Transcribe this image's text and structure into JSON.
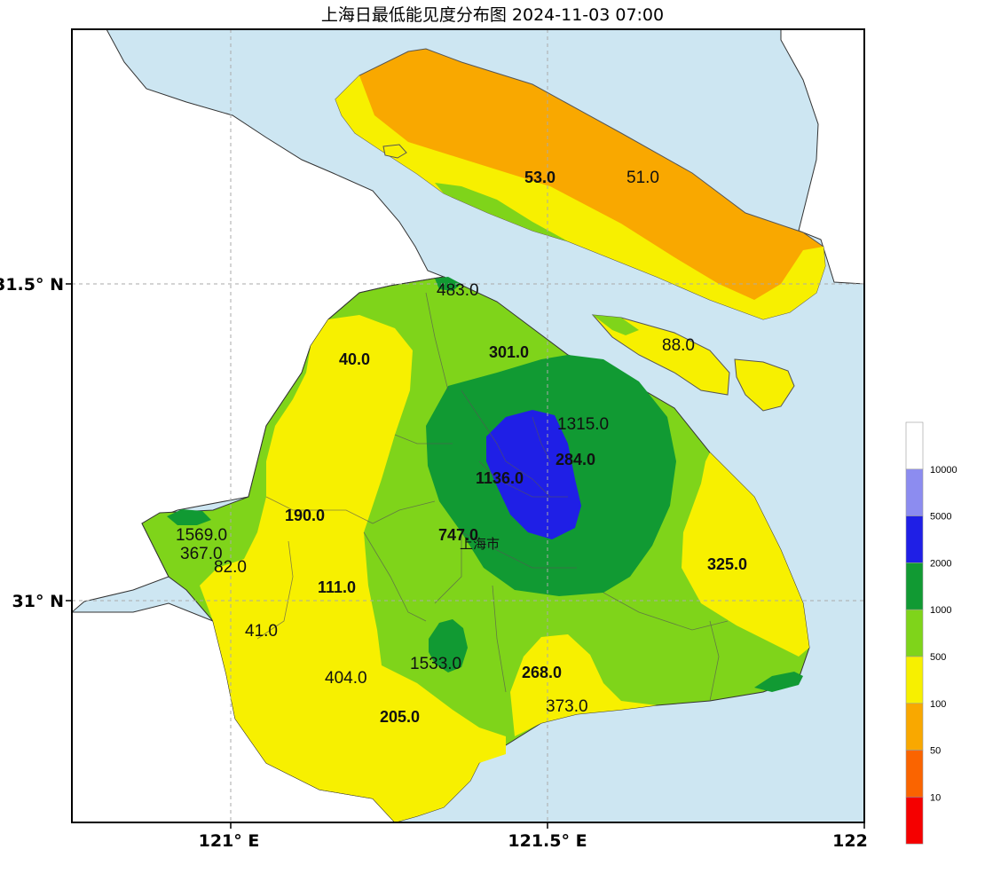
{
  "title": "上海日最低能见度分布图 2024-11-03 07:00",
  "city_label": "上海市",
  "axes": {
    "y_ticks": [
      "31.5° N",
      "31° N"
    ],
    "x_ticks": [
      "121° E",
      "121.5° E",
      "122"
    ]
  },
  "legend": {
    "labels": [
      "10000",
      "5000",
      "2000",
      "1000",
      "500",
      "100",
      "50",
      "10"
    ],
    "colors": [
      "#ffffff",
      "#8c8cf0",
      "#1f1fe6",
      "#119a33",
      "#7fd41a",
      "#f7f000",
      "#f9a800",
      "#fa6400",
      "#f50000"
    ]
  },
  "colors": {
    "sea": "#cde6f2",
    "outside_land": "#ffffff"
  },
  "stations": [
    {
      "label": "53.0",
      "bold": true
    },
    {
      "label": "51.0",
      "bold": false
    },
    {
      "label": "483.0",
      "bold": false
    },
    {
      "label": "88.0",
      "bold": false
    },
    {
      "label": "301.0",
      "bold": true
    },
    {
      "label": "40.0",
      "bold": true
    },
    {
      "label": "1315.0",
      "bold": false
    },
    {
      "label": "284.0",
      "bold": true
    },
    {
      "label": "1136.0",
      "bold": true
    },
    {
      "label": "190.0",
      "bold": true
    },
    {
      "label": "1569.0",
      "bold": false
    },
    {
      "label": "367.0",
      "bold": false
    },
    {
      "label": "82.0",
      "bold": false
    },
    {
      "label": "747.0",
      "bold": true
    },
    {
      "label": "325.0",
      "bold": true
    },
    {
      "label": "111.0",
      "bold": true
    },
    {
      "label": "41.0",
      "bold": false
    },
    {
      "label": "1533.0",
      "bold": false
    },
    {
      "label": "404.0",
      "bold": false
    },
    {
      "label": "268.0",
      "bold": true
    },
    {
      "label": "373.0",
      "bold": false
    },
    {
      "label": "205.0",
      "bold": true
    }
  ]
}
